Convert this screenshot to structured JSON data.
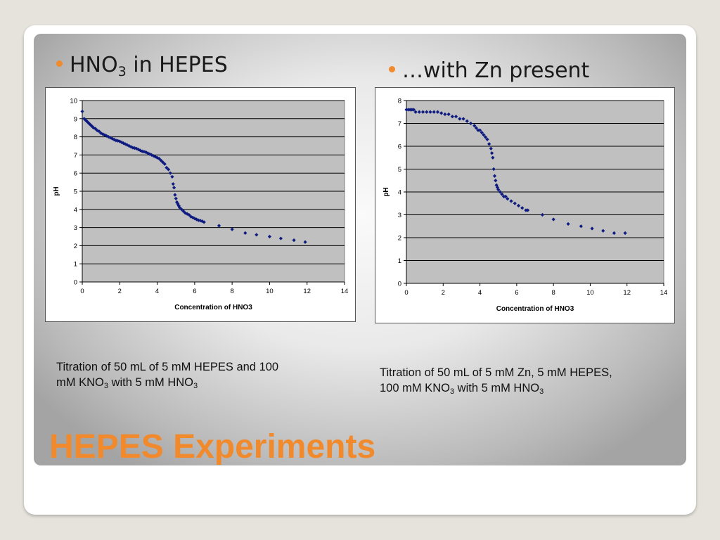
{
  "slide": {
    "title": "HEPES Experiments",
    "accent_color": "#f08a2d",
    "bullets": [
      {
        "pre": "HNO",
        "sub": "3",
        "post": " in HEPES"
      },
      {
        "pre": "…with Zn present",
        "sub": "",
        "post": ""
      }
    ],
    "captions": [
      {
        "line1": "Titration of 50 mL of 5 mM HEPES and 100",
        "line2_pre": "mM KNO",
        "line2_sub1": "3",
        "line2_mid": " with 5 mM HNO",
        "line2_sub2": "3"
      },
      {
        "line1": "Titration of 50 mL of 5 mM Zn, 5 mM HEPES,",
        "line2_pre": "100 mM KNO",
        "line2_sub1": "3",
        "line2_mid": " with 5 mM HNO",
        "line2_sub2": "3"
      }
    ]
  },
  "chart_data": [
    {
      "type": "scatter",
      "title": "",
      "xlabel": "Concentration of HNO3",
      "ylabel": "pH",
      "xlim": [
        0,
        14
      ],
      "ylim": [
        0,
        10
      ],
      "xticks": [
        0,
        2,
        4,
        6,
        8,
        10,
        12,
        14
      ],
      "yticks": [
        0,
        1,
        2,
        3,
        4,
        5,
        6,
        7,
        8,
        9,
        10
      ],
      "grid": "horizontal",
      "plot_bg": "#c0c0c0",
      "marker_color": "#0d1a80",
      "x": [
        0.0,
        0.1,
        0.15,
        0.2,
        0.25,
        0.3,
        0.35,
        0.4,
        0.45,
        0.5,
        0.55,
        0.6,
        0.7,
        0.8,
        0.9,
        1.0,
        1.1,
        1.2,
        1.3,
        1.4,
        1.5,
        1.6,
        1.7,
        1.8,
        1.9,
        2.0,
        2.1,
        2.2,
        2.3,
        2.4,
        2.5,
        2.6,
        2.7,
        2.8,
        2.9,
        3.0,
        3.1,
        3.2,
        3.3,
        3.4,
        3.5,
        3.6,
        3.7,
        3.8,
        3.9,
        4.0,
        4.1,
        4.2,
        4.3,
        4.4,
        4.5,
        4.6,
        4.7,
        4.8,
        4.85,
        4.9,
        4.95,
        5.0,
        5.05,
        5.1,
        5.15,
        5.2,
        5.3,
        5.4,
        5.5,
        5.6,
        5.7,
        5.8,
        5.9,
        6.0,
        6.1,
        6.2,
        6.3,
        6.4,
        6.5,
        7.3,
        8.0,
        8.7,
        9.3,
        10.0,
        10.6,
        11.3,
        11.9
      ],
      "y": [
        9.4,
        9.0,
        8.95,
        8.9,
        8.85,
        8.8,
        8.75,
        8.7,
        8.65,
        8.6,
        8.55,
        8.5,
        8.45,
        8.35,
        8.3,
        8.2,
        8.15,
        8.1,
        8.05,
        8.0,
        7.95,
        7.9,
        7.85,
        7.8,
        7.78,
        7.75,
        7.7,
        7.65,
        7.6,
        7.55,
        7.5,
        7.45,
        7.4,
        7.38,
        7.35,
        7.3,
        7.25,
        7.2,
        7.18,
        7.15,
        7.1,
        7.05,
        7.0,
        6.95,
        6.9,
        6.85,
        6.8,
        6.7,
        6.6,
        6.5,
        6.3,
        6.2,
        6.0,
        5.8,
        5.4,
        5.2,
        4.8,
        4.6,
        4.4,
        4.3,
        4.2,
        4.1,
        4.0,
        3.9,
        3.8,
        3.75,
        3.7,
        3.6,
        3.55,
        3.5,
        3.45,
        3.4,
        3.38,
        3.35,
        3.3,
        3.1,
        2.9,
        2.7,
        2.6,
        2.5,
        2.4,
        2.3,
        2.2
      ]
    },
    {
      "type": "scatter",
      "title": "",
      "xlabel": "Concentration of HNO3",
      "ylabel": "pH",
      "xlim": [
        0,
        14
      ],
      "ylim": [
        0,
        8
      ],
      "xticks": [
        0,
        2,
        4,
        6,
        8,
        10,
        12,
        14
      ],
      "yticks": [
        0,
        1,
        2,
        3,
        4,
        5,
        6,
        7,
        8
      ],
      "grid": "horizontal",
      "plot_bg": "#c0c0c0",
      "marker_color": "#0d1a80",
      "x": [
        0.0,
        0.1,
        0.2,
        0.3,
        0.4,
        0.5,
        0.7,
        0.9,
        1.1,
        1.3,
        1.5,
        1.7,
        1.9,
        2.1,
        2.3,
        2.5,
        2.7,
        2.9,
        3.1,
        3.3,
        3.5,
        3.7,
        3.8,
        3.9,
        4.0,
        4.1,
        4.2,
        4.3,
        4.4,
        4.5,
        4.6,
        4.65,
        4.7,
        4.75,
        4.8,
        4.85,
        4.9,
        4.95,
        5.0,
        5.1,
        5.2,
        5.3,
        5.4,
        5.5,
        5.7,
        5.9,
        6.1,
        6.3,
        6.5,
        6.6,
        7.4,
        8.0,
        8.8,
        9.5,
        10.1,
        10.7,
        11.3,
        11.9
      ],
      "y": [
        7.6,
        7.6,
        7.6,
        7.6,
        7.6,
        7.5,
        7.5,
        7.5,
        7.5,
        7.5,
        7.5,
        7.5,
        7.45,
        7.4,
        7.4,
        7.3,
        7.3,
        7.2,
        7.2,
        7.1,
        7.0,
        6.9,
        6.8,
        6.7,
        6.7,
        6.6,
        6.5,
        6.4,
        6.3,
        6.1,
        5.9,
        5.7,
        5.5,
        5.0,
        4.7,
        4.5,
        4.3,
        4.2,
        4.1,
        4.0,
        3.9,
        3.8,
        3.8,
        3.7,
        3.6,
        3.5,
        3.4,
        3.3,
        3.2,
        3.2,
        3.0,
        2.8,
        2.6,
        2.5,
        2.4,
        2.3,
        2.2,
        2.2
      ]
    }
  ]
}
